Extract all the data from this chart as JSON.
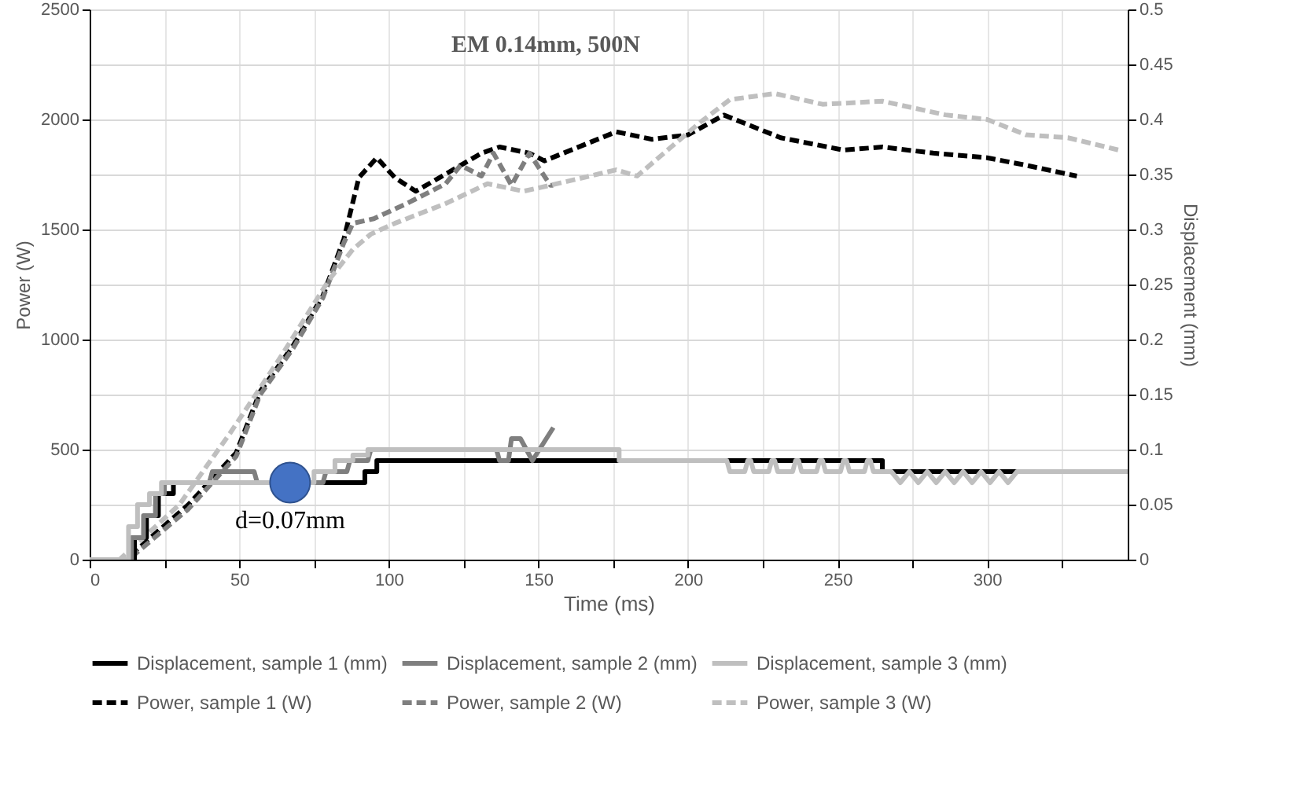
{
  "chart_data": {
    "type": "line",
    "title": "EM 0.14mm, 500N",
    "xlabel": "Time (ms)",
    "ylabel": "Power (W)",
    "y2label": "Displacement (mm)",
    "xlim": [
      0,
      347
    ],
    "xticks": [
      0,
      {
        "value": 25,
        "label": null
      },
      50,
      {
        "value": 75,
        "label": null
      },
      100,
      {
        "value": 125,
        "label": null
      },
      150,
      {
        "value": 175,
        "label": null
      },
      200,
      {
        "value": 225,
        "label": null
      },
      250,
      {
        "value": 275,
        "label": null
      },
      300,
      {
        "value": 325,
        "label": null
      }
    ],
    "ylim": [
      0,
      2500
    ],
    "yticks": [
      0,
      500,
      1000,
      1500,
      2000,
      2500
    ],
    "y2lim": [
      0,
      0.5
    ],
    "y2ticks": [
      0,
      0.05,
      0.1,
      0.15,
      0.2,
      0.25,
      0.3,
      0.35,
      0.4,
      0.45,
      0.5
    ],
    "grid": true,
    "legend": "bottom",
    "annotations": [
      {
        "text": "d=0.07mm",
        "x": 67,
        "y": 350
      }
    ],
    "series": [
      {
        "name": "Displacement, sample 1 (mm)",
        "type": "line",
        "axis": "y2",
        "line_style": "solid",
        "color": "#000000",
        "x": [
          0,
          12,
          15,
          15,
          19,
          19,
          23,
          23,
          28,
          28,
          92,
          92,
          96,
          96,
          265,
          265,
          310
        ],
        "values": [
          0,
          0,
          0,
          0.02,
          0.02,
          0.04,
          0.04,
          0.06,
          0.06,
          0.07,
          0.07,
          0.08,
          0.08,
          0.09,
          0.09,
          0.08,
          0.08
        ]
      },
      {
        "name": "Displacement, sample 2 (mm)",
        "type": "line",
        "axis": "y2",
        "line_style": "solid",
        "color": "#7f7f7f",
        "x": [
          0,
          11,
          14,
          14,
          18,
          18,
          22,
          22,
          25,
          25,
          40,
          41,
          55,
          56,
          78,
          79,
          86,
          87,
          93,
          94,
          136,
          137,
          140,
          141,
          144,
          148,
          155
        ],
        "values": [
          0,
          0,
          0,
          0.02,
          0.02,
          0.04,
          0.04,
          0.06,
          0.06,
          0.07,
          0.07,
          0.08,
          0.08,
          0.07,
          0.07,
          0.08,
          0.08,
          0.09,
          0.09,
          0.1,
          0.1,
          0.09,
          0.09,
          0.11,
          0.11,
          0.09,
          0.12
        ]
      },
      {
        "name": "Displacement, sample 3 (mm)",
        "type": "line",
        "axis": "y2",
        "line_style": "solid",
        "color": "#bfbfbf",
        "x": [
          0,
          10,
          13,
          13,
          16,
          16,
          20,
          20,
          24,
          24,
          75,
          75,
          82,
          82,
          88,
          88,
          93,
          93,
          177,
          177,
          213,
          214,
          219,
          220,
          221,
          222,
          227,
          228,
          229,
          230,
          235,
          236,
          237,
          238,
          243,
          244,
          245,
          246,
          251,
          252,
          253,
          254,
          259,
          260,
          261,
          262,
          267,
          268,
          271,
          274,
          277,
          280,
          283,
          286,
          289,
          292,
          295,
          298,
          301,
          304,
          307,
          310,
          347
        ],
        "values": [
          0,
          0,
          0,
          0.03,
          0.03,
          0.05,
          0.05,
          0.06,
          0.06,
          0.07,
          0.07,
          0.08,
          0.08,
          0.09,
          0.09,
          0.095,
          0.095,
          0.1,
          0.1,
          0.09,
          0.09,
          0.08,
          0.08,
          0.09,
          0.09,
          0.08,
          0.08,
          0.09,
          0.09,
          0.08,
          0.08,
          0.09,
          0.09,
          0.08,
          0.08,
          0.09,
          0.09,
          0.08,
          0.08,
          0.09,
          0.09,
          0.08,
          0.08,
          0.09,
          0.09,
          0.08,
          0.08,
          0.08,
          0.07,
          0.08,
          0.07,
          0.08,
          0.07,
          0.08,
          0.07,
          0.08,
          0.07,
          0.08,
          0.07,
          0.08,
          0.07,
          0.08,
          0.08
        ]
      },
      {
        "name": "Power, sample 1 (W)",
        "type": "line",
        "line_style": "dashed",
        "color": "#000000",
        "x": [
          0,
          12,
          33,
          49,
          57,
          68,
          78,
          85,
          90,
          96,
          102,
          109,
          117,
          131,
          137,
          147,
          152,
          176,
          188,
          200,
          212,
          231,
          252,
          265,
          282,
          300,
          313,
          330
        ],
        "values": [
          0,
          0,
          250,
          486,
          764,
          972,
          1200,
          1458,
          1736,
          1826,
          1736,
          1674,
          1736,
          1847,
          1875,
          1847,
          1812,
          1944,
          1910,
          1930,
          2020,
          1917,
          1861,
          1875,
          1847,
          1826,
          1792,
          1743
        ]
      },
      {
        "name": "Power, sample 2 (W)",
        "type": "line",
        "line_style": "dashed",
        "color": "#7f7f7f",
        "x": [
          0,
          13,
          33,
          49,
          57,
          68,
          78,
          85,
          88,
          95,
          106,
          119,
          124,
          131,
          135,
          141,
          147,
          154,
          155
        ],
        "values": [
          0,
          0,
          230,
          470,
          750,
          960,
          1190,
          1440,
          1528,
          1549,
          1618,
          1708,
          1792,
          1743,
          1847,
          1701,
          1847,
          1701,
          1701
        ]
      },
      {
        "name": "Power, sample 3 (W)",
        "type": "line",
        "line_style": "dashed",
        "color": "#bfbfbf",
        "x": [
          0,
          10,
          30,
          47,
          64,
          80,
          88,
          94,
          102,
          119,
          133,
          145,
          154,
          176,
          183,
          204,
          214,
          229,
          245,
          265,
          286,
          300,
          313,
          327,
          344
        ],
        "values": [
          0,
          0,
          250,
          576,
          924,
          1271,
          1410,
          1479,
          1528,
          1618,
          1708,
          1674,
          1701,
          1771,
          1743,
          1986,
          2090,
          2118,
          2069,
          2083,
          2021,
          2000,
          1930,
          1917,
          1861
        ]
      },
      {
        "type": "scatter",
        "axis": "y2",
        "marker": "circle",
        "color": "#4472c4",
        "x": [
          67
        ],
        "values": [
          0.07
        ]
      }
    ]
  }
}
